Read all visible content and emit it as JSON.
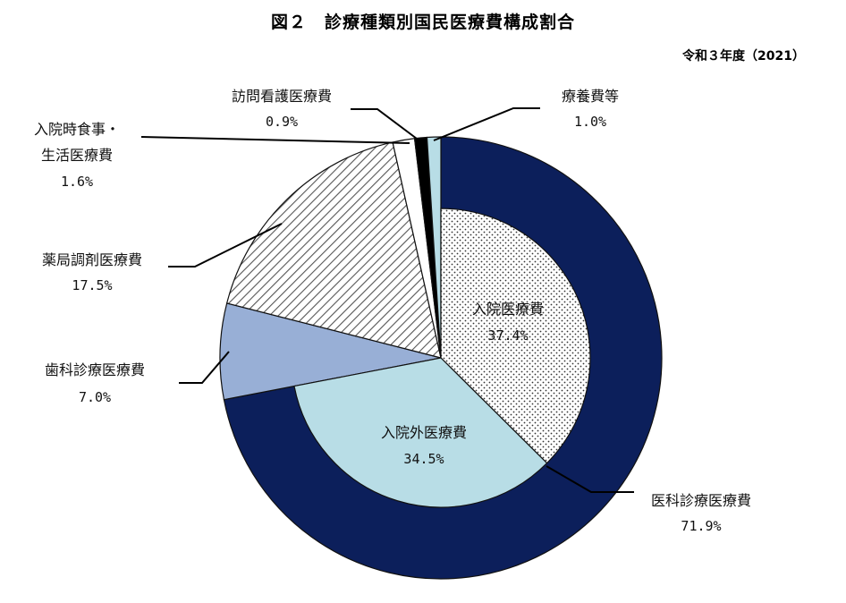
{
  "chart_data": {
    "type": "pie",
    "title": "図２　診療種類別国民医療費構成割合",
    "subtitle": "令和３年度（2021）",
    "outer_ring": [
      {
        "label": "医科診療医療費",
        "value_text": "71.9%",
        "value": 71.9,
        "color": "#0c1f5b",
        "pattern": "solid"
      },
      {
        "label": "歯科診療医療費",
        "value_text": "7.0%",
        "value": 7.0,
        "color": "#98afd6",
        "pattern": "solid"
      },
      {
        "label": "薬局調剤医療費",
        "value_text": "17.5%",
        "value": 17.5,
        "color": "#ffffff",
        "pattern": "diagonal-hatch"
      },
      {
        "label_lines": [
          "入院時食事・",
          "生活医療費"
        ],
        "value_text": "1.6%",
        "value": 1.6,
        "color": "#ffffff",
        "pattern": "solid"
      },
      {
        "label": "訪問看護医療費",
        "value_text": "0.9%",
        "value": 0.9,
        "color": "#000000",
        "pattern": "solid"
      },
      {
        "label": "療養費等",
        "value_text": "1.0%",
        "value": 1.0,
        "color": "#b8dde6",
        "pattern": "solid"
      }
    ],
    "inner_ring": [
      {
        "label": "入院医療費",
        "value_text": "37.4%",
        "value": 37.4,
        "color": "#ffffff",
        "pattern": "dots"
      },
      {
        "label": "入院外医療費",
        "value_text": "34.5%",
        "value": 34.5,
        "color": "#b8dde6",
        "pattern": "solid"
      }
    ]
  }
}
